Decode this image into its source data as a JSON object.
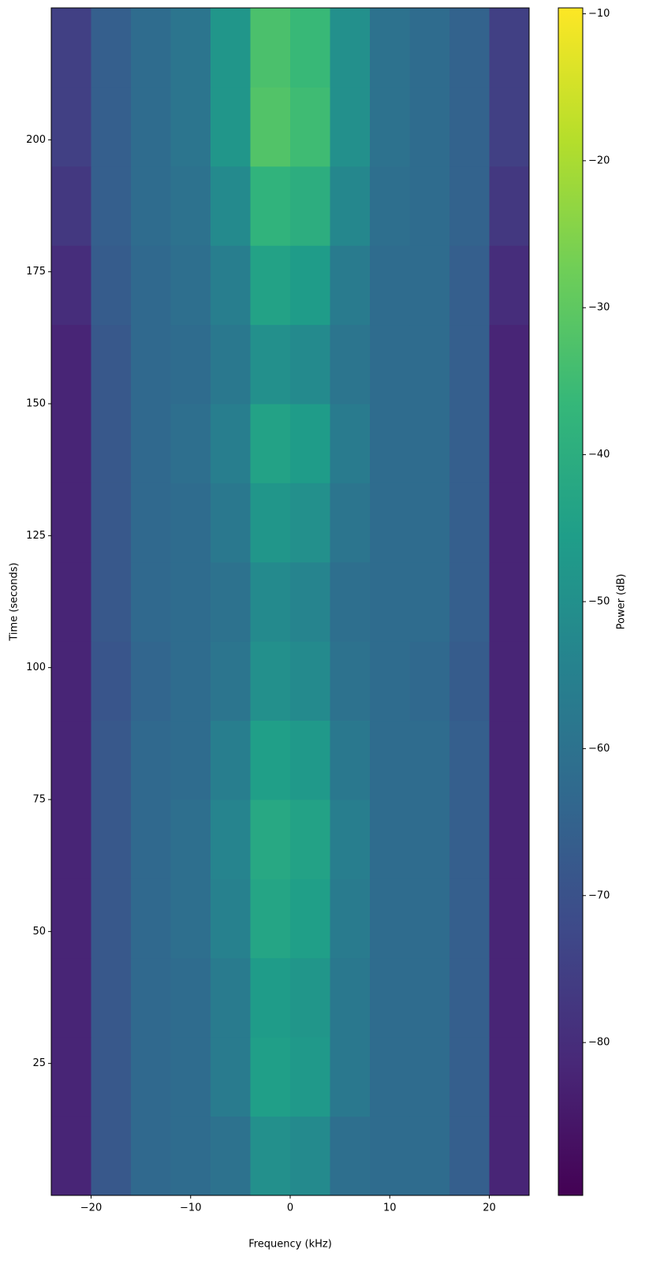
{
  "chart_data": {
    "type": "heatmap",
    "xlabel": "Frequency (kHz)",
    "ylabel": "Time (seconds)",
    "colorbar_label": "Power (dB)",
    "x_edges": [
      -24,
      -20,
      -16,
      -12,
      -8,
      -4,
      0,
      4,
      8,
      12,
      16,
      20,
      24
    ],
    "y_edges": [
      0,
      15,
      30,
      45,
      60,
      75,
      90,
      105,
      120,
      135,
      150,
      165,
      180,
      195,
      210,
      225
    ],
    "z": [
      [
        -82,
        -68,
        -63,
        -62,
        -60,
        -50,
        -52,
        -61,
        -62,
        -62,
        -66,
        -82
      ],
      [
        -82,
        -68,
        -63,
        -62,
        -57,
        -45,
        -47,
        -58,
        -62,
        -62,
        -66,
        -82
      ],
      [
        -82,
        -68,
        -63,
        -62,
        -57,
        -46,
        -48,
        -58,
        -62,
        -62,
        -66,
        -82
      ],
      [
        -82,
        -68,
        -63,
        -61,
        -55,
        -43,
        -45,
        -57,
        -62,
        -62,
        -66,
        -82
      ],
      [
        -82,
        -68,
        -63,
        -61,
        -54,
        -42,
        -44,
        -56,
        -62,
        -62,
        -66,
        -82
      ],
      [
        -82,
        -68,
        -63,
        -62,
        -56,
        -45,
        -47,
        -58,
        -62,
        -62,
        -66,
        -82
      ],
      [
        -82,
        -69,
        -64,
        -62,
        -59,
        -50,
        -52,
        -60,
        -62,
        -63,
        -67,
        -82
      ],
      [
        -82,
        -68,
        -63,
        -62,
        -60,
        -52,
        -54,
        -61,
        -62,
        -62,
        -66,
        -82
      ],
      [
        -82,
        -68,
        -63,
        -62,
        -58,
        -48,
        -50,
        -59,
        -62,
        -62,
        -66,
        -82
      ],
      [
        -82,
        -68,
        -63,
        -61,
        -56,
        -44,
        -46,
        -57,
        -62,
        -62,
        -66,
        -82
      ],
      [
        -82,
        -68,
        -63,
        -62,
        -58,
        -50,
        -52,
        -59,
        -62,
        -62,
        -66,
        -82
      ],
      [
        -80,
        -67,
        -63,
        -61,
        -56,
        -44,
        -46,
        -57,
        -62,
        -62,
        -66,
        -80
      ],
      [
        -77,
        -66,
        -62,
        -60,
        -52,
        -38,
        -40,
        -53,
        -61,
        -62,
        -65,
        -77
      ],
      [
        -75,
        -66,
        -62,
        -59,
        -48,
        -32,
        -35,
        -50,
        -60,
        -62,
        -65,
        -75
      ],
      [
        -75,
        -66,
        -62,
        -59,
        -48,
        -33,
        -36,
        -50,
        -60,
        -62,
        -65,
        -75
      ]
    ],
    "xlim": [
      -24,
      24
    ],
    "ylim": [
      0,
      225
    ],
    "clim": [
      -90.4,
      -9.6
    ],
    "xticks": [
      {
        "value": -20,
        "label": "−20"
      },
      {
        "value": -10,
        "label": "−10"
      },
      0,
      10,
      20
    ],
    "yticks": [
      25,
      50,
      75,
      100,
      125,
      150,
      175,
      200
    ],
    "cticks": [
      {
        "value": -10,
        "label": "−10"
      },
      {
        "value": -20,
        "label": "−20"
      },
      {
        "value": -30,
        "label": "−30"
      },
      {
        "value": -40,
        "label": "−40"
      },
      {
        "value": -50,
        "label": "−50"
      },
      {
        "value": -60,
        "label": "−60"
      },
      {
        "value": -70,
        "label": "−70"
      },
      {
        "value": -80,
        "label": "−80"
      }
    ],
    "colormap": [
      "#440154",
      "#482878",
      "#3e4989",
      "#31688e",
      "#26828e",
      "#1f9e89",
      "#35b779",
      "#6ece58",
      "#b5de2b",
      "#fde725"
    ]
  }
}
